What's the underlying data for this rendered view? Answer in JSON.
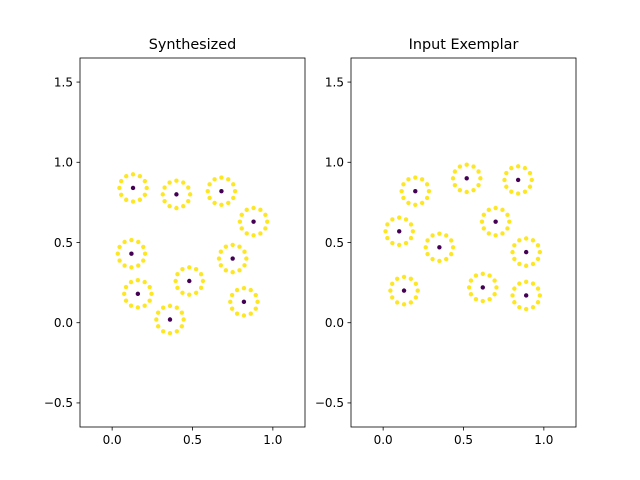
{
  "chart_data": [
    {
      "type": "scatter",
      "title": "Synthesized",
      "xlabel": "",
      "ylabel": "",
      "xlim": [
        -0.2,
        1.2
      ],
      "ylim": [
        -0.65,
        1.65
      ],
      "xticks": [
        0.0,
        0.5,
        1.0
      ],
      "yticks": [
        -0.5,
        0.0,
        0.5,
        1.0,
        1.5
      ],
      "xtick_labels": [
        "0.0",
        "0.5",
        "1.0"
      ],
      "ytick_labels": [
        "−0.5",
        "0.0",
        "0.5",
        "1.0",
        "1.5"
      ],
      "grid": false,
      "ring_radius": 0.085,
      "ring_points": 12,
      "center_color": "#440154",
      "ring_color": "#fde725",
      "centers": [
        {
          "x": 0.13,
          "y": 0.84
        },
        {
          "x": 0.4,
          "y": 0.8
        },
        {
          "x": 0.68,
          "y": 0.82
        },
        {
          "x": 0.88,
          "y": 0.63
        },
        {
          "x": 0.12,
          "y": 0.43
        },
        {
          "x": 0.75,
          "y": 0.4
        },
        {
          "x": 0.48,
          "y": 0.26
        },
        {
          "x": 0.16,
          "y": 0.18
        },
        {
          "x": 0.82,
          "y": 0.13
        },
        {
          "x": 0.36,
          "y": 0.02
        }
      ]
    },
    {
      "type": "scatter",
      "title": "Input Exemplar",
      "xlabel": "",
      "ylabel": "",
      "xlim": [
        -0.2,
        1.2
      ],
      "ylim": [
        -0.65,
        1.65
      ],
      "xticks": [
        0.0,
        0.5,
        1.0
      ],
      "yticks": [
        -0.5,
        0.0,
        0.5,
        1.0,
        1.5
      ],
      "xtick_labels": [
        "0.0",
        "0.5",
        "1.0"
      ],
      "ytick_labels": [
        "−0.5",
        "0.0",
        "0.5",
        "1.0",
        "1.5"
      ],
      "grid": false,
      "ring_radius": 0.085,
      "ring_points": 12,
      "center_color": "#440154",
      "ring_color": "#fde725",
      "centers": [
        {
          "x": 0.52,
          "y": 0.9
        },
        {
          "x": 0.84,
          "y": 0.89
        },
        {
          "x": 0.2,
          "y": 0.82
        },
        {
          "x": 0.7,
          "y": 0.63
        },
        {
          "x": 0.1,
          "y": 0.57
        },
        {
          "x": 0.35,
          "y": 0.47
        },
        {
          "x": 0.89,
          "y": 0.44
        },
        {
          "x": 0.62,
          "y": 0.22
        },
        {
          "x": 0.13,
          "y": 0.2
        },
        {
          "x": 0.89,
          "y": 0.17
        }
      ]
    }
  ]
}
